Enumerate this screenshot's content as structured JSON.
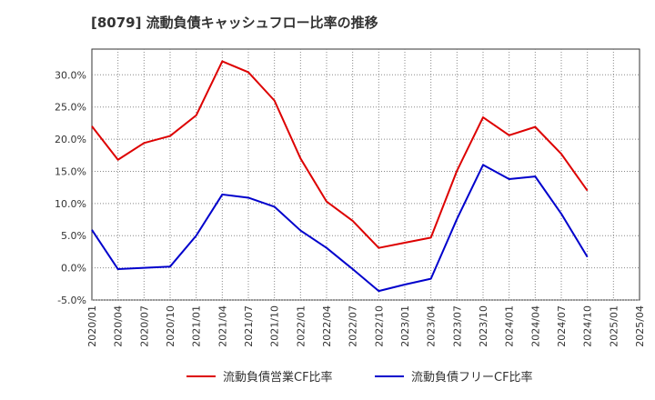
{
  "chart_data": {
    "type": "line",
    "title": "[8079]  流動負債キャッシュフロー比率の推移",
    "xlabel": "",
    "ylabel": "",
    "categories": [
      "2020/01",
      "2020/04",
      "2020/07",
      "2020/10",
      "2021/01",
      "2021/04",
      "2021/07",
      "2021/10",
      "2022/01",
      "2022/04",
      "2022/07",
      "2022/10",
      "2023/01",
      "2023/04",
      "2023/07",
      "2023/10",
      "2024/01",
      "2024/04",
      "2024/07",
      "2024/10",
      "2025/01",
      "2025/04"
    ],
    "ylim": [
      -5,
      34
    ],
    "yticks": [
      -5,
      0,
      5,
      10,
      15,
      20,
      25,
      30
    ],
    "ytick_labels": [
      "-5.0%",
      "0.0%",
      "5.0%",
      "10.0%",
      "15.0%",
      "20.0%",
      "25.0%",
      "30.0%"
    ],
    "grid": true,
    "legend_position": "bottom-center",
    "series": [
      {
        "name": "流動負債営業CF比率",
        "color": "#dd0000",
        "values": [
          22.0,
          16.8,
          19.4,
          20.5,
          23.7,
          32.1,
          30.4,
          26.0,
          17.0,
          10.3,
          7.3,
          3.1,
          3.9,
          4.7,
          15.1,
          23.4,
          20.6,
          21.9,
          17.7,
          12.0,
          null,
          null
        ]
      },
      {
        "name": "流動負債フリーCF比率",
        "color": "#0000cc",
        "values": [
          5.9,
          -0.2,
          0.0,
          0.2,
          5.0,
          11.4,
          10.9,
          9.5,
          5.8,
          3.1,
          -0.2,
          -3.6,
          -2.6,
          -1.7,
          7.6,
          16.0,
          13.8,
          14.2,
          8.4,
          1.7,
          null,
          null
        ]
      }
    ]
  }
}
